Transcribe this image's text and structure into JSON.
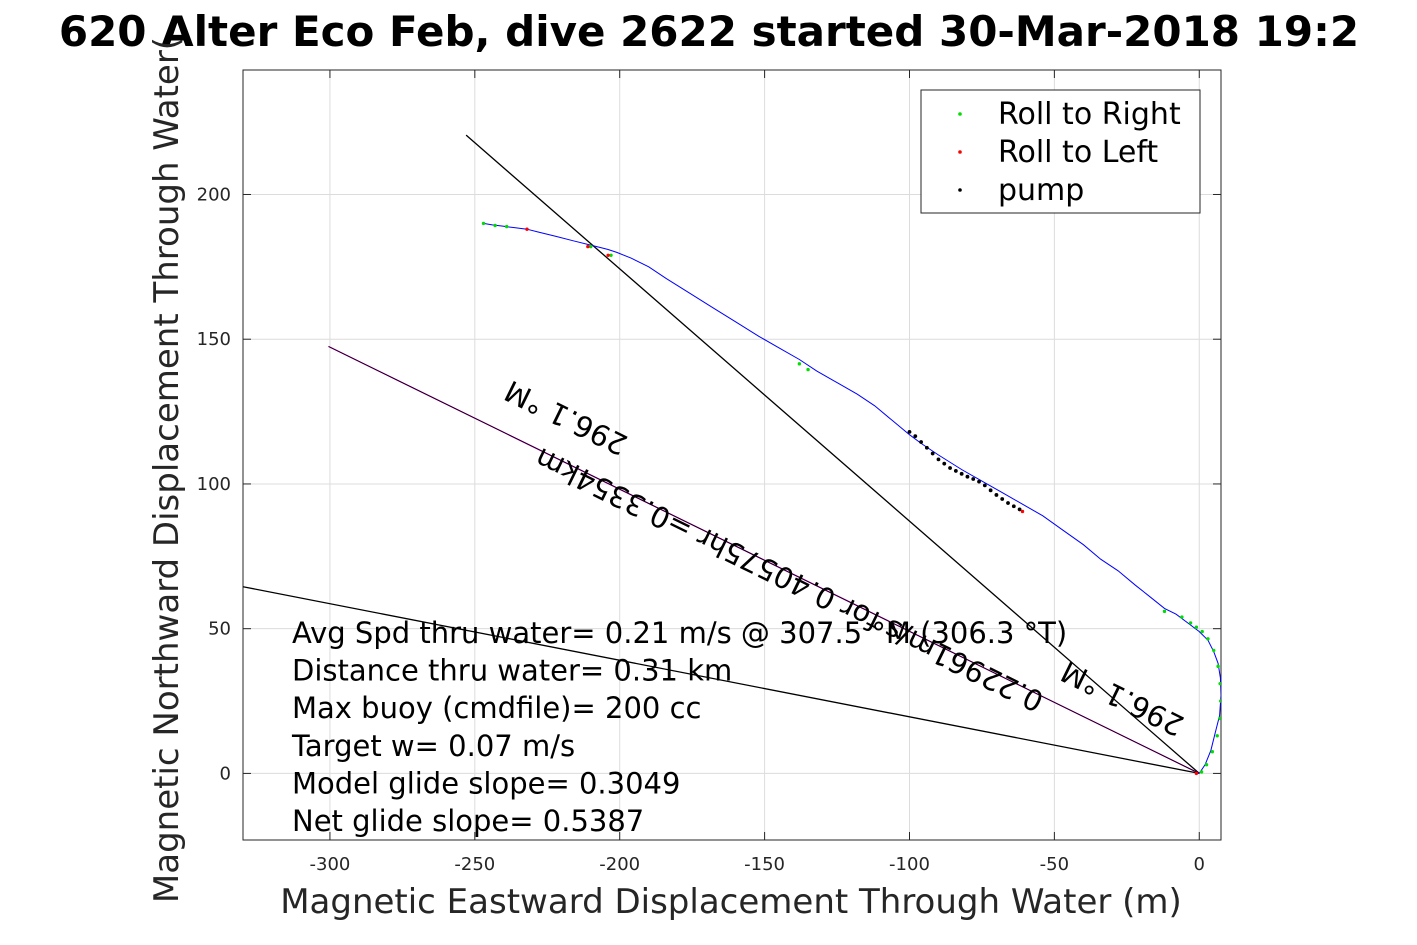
{
  "chart_data": {
    "type": "scatter",
    "title": "620 Alter Eco Feb, dive 2622 started 30-Mar-2018 19:2",
    "xlabel": "Magnetic Eastward Displacement Through Water (m)",
    "ylabel": "Magnetic Northward Displacement Through Water(",
    "xlim": [
      -330,
      7.5
    ],
    "ylim": [
      -23,
      243
    ],
    "xticks": [
      -300,
      -250,
      -200,
      -150,
      -100,
      -50,
      0
    ],
    "yticks": [
      0,
      50,
      100,
      150,
      200
    ],
    "xtick_labels": [
      "-300",
      "-250",
      "-200",
      "-150",
      "-100",
      "-50",
      "0"
    ],
    "ytick_labels": [
      "0",
      "50",
      "100",
      "150",
      "200"
    ],
    "grid": true,
    "legend_position": "top-right",
    "legend": [
      {
        "label": "Roll to Right",
        "color": "#00dd00"
      },
      {
        "label": "Roll to Left",
        "color": "#ff0000"
      },
      {
        "label": "pump",
        "color": "#000000"
      }
    ],
    "track": {
      "color": "#0000ff",
      "x": [
        0,
        2,
        4,
        5.5,
        7,
        7.5,
        7.3,
        6.5,
        5,
        3,
        0,
        -4,
        -8,
        -12,
        -17,
        -22,
        -28,
        -34,
        -40,
        -47,
        -54,
        -61,
        -68,
        -75,
        -82,
        -90,
        -96,
        -100,
        -106,
        -112,
        -118,
        -125,
        -132,
        -138,
        -145,
        -152,
        -160,
        -168,
        -176,
        -184,
        -190,
        -196,
        -201,
        -204,
        -206,
        -210,
        -216,
        -222,
        -228,
        -232,
        -236,
        -240,
        -244,
        -247
      ],
      "y": [
        0,
        3,
        8,
        14,
        20,
        27,
        33,
        38,
        42,
        46,
        49,
        52,
        55,
        57,
        61,
        65,
        70,
        74,
        79,
        84,
        89,
        93,
        97,
        101,
        105,
        110,
        114,
        117,
        122,
        127,
        131,
        135,
        139,
        143,
        147,
        151,
        156,
        161,
        166,
        171,
        175,
        178,
        180,
        181,
        181.5,
        182.5,
        184,
        185.5,
        187,
        188,
        188.5,
        189,
        189.5,
        190
      ]
    },
    "roll_right": {
      "x": [
        -247,
        -243,
        -239,
        -210,
        -203,
        -138,
        -135,
        -12,
        -6,
        -3,
        -1,
        1,
        3,
        5,
        6.5,
        7.2,
        7.4,
        7.1,
        6.2,
        4.5,
        2.5,
        0.8
      ],
      "y": [
        190,
        189.3,
        188.9,
        182,
        179,
        141.5,
        139.5,
        56,
        54,
        52,
        50.5,
        49,
        46.5,
        42.5,
        37,
        31,
        25,
        19,
        13,
        7.5,
        3,
        0.5
      ]
    },
    "roll_left": {
      "x": [
        -232,
        -211,
        -204,
        -61,
        -1
      ],
      "y": [
        188,
        182,
        179,
        90.5,
        0
      ]
    },
    "pump": {
      "x": [
        -100,
        -98,
        -96,
        -94,
        -92,
        -90,
        -88,
        -86,
        -84,
        -82,
        -80,
        -78,
        -76,
        -74,
        -72,
        -70,
        -68,
        -66,
        -64,
        -62
      ],
      "y": [
        118,
        116.5,
        114.5,
        112.5,
        110.5,
        108.5,
        107,
        105.5,
        104.5,
        103.5,
        102.5,
        101.7,
        100.8,
        99.5,
        97.8,
        96.2,
        94.8,
        93.4,
        92.3,
        91.2
      ]
    },
    "reference_lines": [
      {
        "color": "#000000",
        "x": [
          0,
          -253
        ],
        "y": [
          0,
          220.5
        ]
      },
      {
        "color": "#000000",
        "x": [
          0,
          -330
        ],
        "y": [
          0,
          64.5
        ]
      },
      {
        "color": "#cc00cc",
        "x": [
          0,
          -300.5
        ],
        "y": [
          0,
          147.5
        ]
      },
      {
        "color": "#000000",
        "x": [
          0,
          -300.5
        ],
        "y": [
          0,
          147.5
        ]
      }
    ],
    "rotated_labels": [
      {
        "text": "296.1 °M",
        "x": -217,
        "y": 126,
        "angle": 26.1
      },
      {
        "text": "0.22961m/s for 0.40575hr =0.3354km",
        "x": -140,
        "y": 70,
        "angle": 26.1
      },
      {
        "text": "296.1 °M",
        "x": -25,
        "y": 29,
        "angle": 26.1
      }
    ],
    "annotations": [
      "Avg Spd thru water=  0.21 m/s @ 307.5 °M (306.3 °T)",
      "Distance thru water=  0.31 km",
      "Max buoy (cmdfile)= 200 cc",
      "Target w= 0.07 m/s",
      "Model glide slope= 0.3049",
      "Net glide slope= 0.5387"
    ]
  }
}
